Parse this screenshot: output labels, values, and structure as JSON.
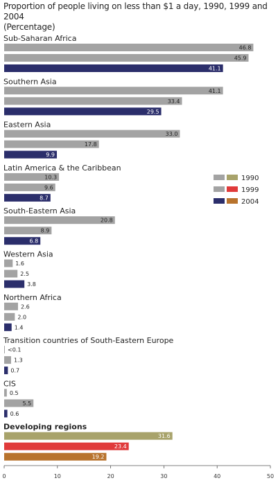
{
  "chart_data": {
    "type": "bar",
    "orientation": "horizontal",
    "title": "Proportion of people living on less than $1 a day, 1990, 1999 and 2004",
    "subtitle": "(Percentage)",
    "xlim": [
      0,
      50
    ],
    "x_ticks": [
      "0",
      "10",
      "20",
      "30",
      "40",
      "50"
    ],
    "grid": false,
    "legend_position": "right",
    "legend": [
      {
        "label": "1990",
        "colors": [
          "#a3a3a3",
          "#a8a36b"
        ]
      },
      {
        "label": "1999",
        "colors": [
          "#a3a3a3",
          "#e03a3a"
        ]
      },
      {
        "label": "2004",
        "colors": [
          "#2b2e6b",
          "#b8732d"
        ]
      }
    ],
    "colors": {
      "regular_1990": "#a3a3a3",
      "regular_1999": "#a3a3a3",
      "regular_2004": "#2b2e6b",
      "developing_1990": "#a8a36b",
      "developing_1999": "#e03a3a",
      "developing_2004": "#b8732d"
    },
    "series_years": [
      "1990",
      "1999",
      "2004"
    ],
    "groups": [
      {
        "label": "Sub-Saharan Africa",
        "bold": false,
        "values": [
          46.8,
          45.9,
          41.1
        ],
        "labels": [
          "46.8",
          "45.9",
          "41.1"
        ]
      },
      {
        "label": "Southern Asia",
        "bold": false,
        "values": [
          41.1,
          33.4,
          29.5
        ],
        "labels": [
          "41.1",
          "33.4",
          "29.5"
        ]
      },
      {
        "label": "Eastern Asia",
        "bold": false,
        "values": [
          33.0,
          17.8,
          9.9
        ],
        "labels": [
          "33.0",
          "17.8",
          "9.9"
        ]
      },
      {
        "label": "Latin America & the Caribbean",
        "bold": false,
        "values": [
          10.3,
          9.6,
          8.7
        ],
        "labels": [
          "10.3",
          "9.6",
          "8.7"
        ]
      },
      {
        "label": "South-Eastern Asia",
        "bold": false,
        "values": [
          20.8,
          8.9,
          6.8
        ],
        "labels": [
          "20.8",
          "8.9",
          "6.8"
        ]
      },
      {
        "label": "Western Asia",
        "bold": false,
        "values": [
          1.6,
          2.5,
          3.8
        ],
        "labels": [
          "1.6",
          "2.5",
          "3.8"
        ]
      },
      {
        "label": "Northern Africa",
        "bold": false,
        "values": [
          2.6,
          2.0,
          1.4
        ],
        "labels": [
          "2.6",
          "2.0",
          "1.4"
        ]
      },
      {
        "label": "Transition countries of South-Eastern Europe",
        "bold": false,
        "values": [
          0.05,
          1.3,
          0.7
        ],
        "labels": [
          "<0.1",
          "1.3",
          "0.7"
        ]
      },
      {
        "label": "CIS",
        "bold": false,
        "values": [
          0.5,
          5.5,
          0.6
        ],
        "labels": [
          "0.5",
          "5.5",
          "0.6"
        ]
      },
      {
        "label": "Developing regions",
        "bold": true,
        "values": [
          31.6,
          23.4,
          19.2
        ],
        "labels": [
          "31.6",
          "23.4",
          "19.2"
        ]
      }
    ]
  }
}
